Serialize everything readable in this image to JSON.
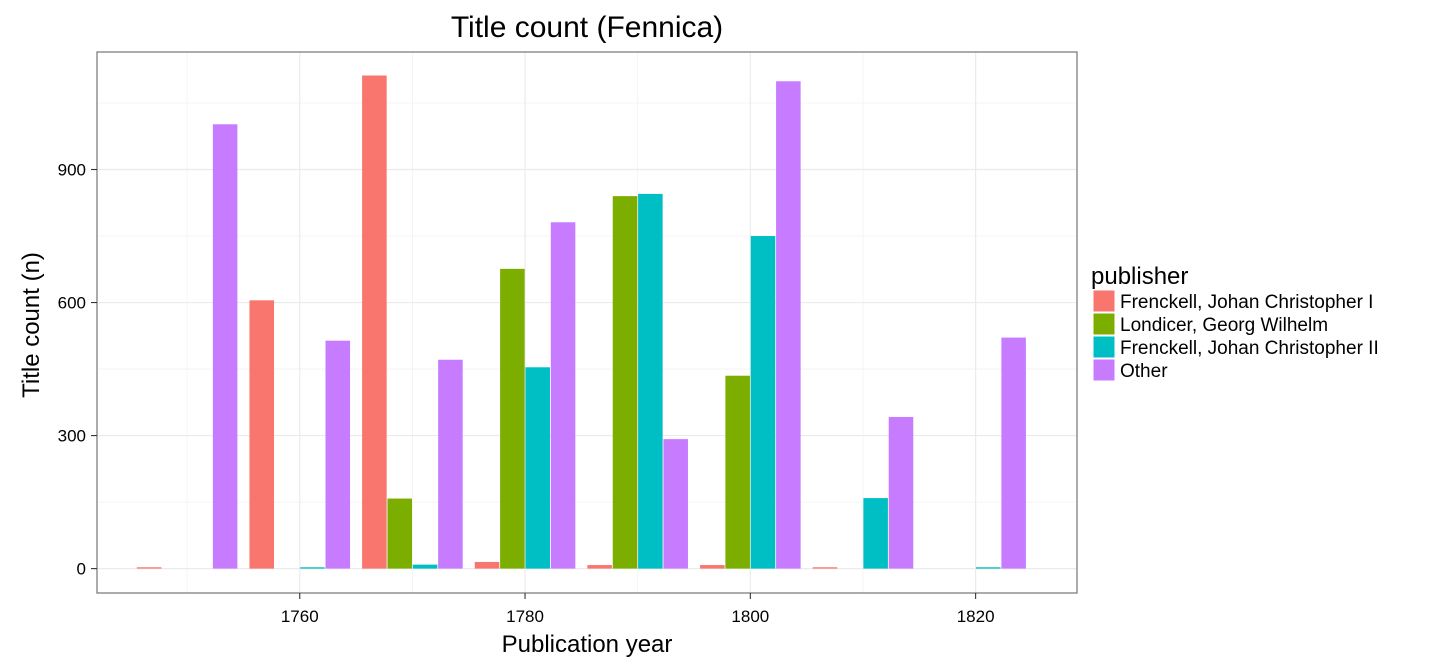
{
  "chart_data": {
    "type": "bar",
    "title": "Title count (Fennica)",
    "xlabel": "Publication year",
    "ylabel": "Title count (n)",
    "xlim": [
      1742,
      1829
    ],
    "ylim": [
      -55,
      1165
    ],
    "x_ticks": [
      1760,
      1780,
      1800,
      1820
    ],
    "y_ticks": [
      0,
      300,
      600,
      900
    ],
    "x_tick_labels": [
      "1760",
      "1780",
      "1800",
      "1820"
    ],
    "y_tick_labels": [
      "0",
      "300",
      "600",
      "900"
    ],
    "group_width_years": 9,
    "grid": true,
    "legend": {
      "title": "publisher",
      "position": "right"
    },
    "colors": [
      "#F8766D",
      "#7CAE00",
      "#00BFC4",
      "#C77CFF"
    ],
    "groups": [
      1750,
      1760,
      1770,
      1780,
      1790,
      1800,
      1810,
      1820
    ],
    "series": [
      {
        "name": "Frenckell, Johan Christopher I",
        "values": [
          3,
          605,
          1112,
          15,
          8,
          8,
          3,
          null
        ]
      },
      {
        "name": "Londicer, Georg Wilhelm",
        "values": [
          null,
          null,
          158,
          676,
          840,
          435,
          null,
          null
        ]
      },
      {
        "name": "Frenckell, Johan Christopher II",
        "values": [
          null,
          3,
          9,
          454,
          845,
          750,
          159,
          3
        ]
      },
      {
        "name": "Other",
        "values": [
          1002,
          514,
          471,
          781,
          292,
          1099,
          342,
          521
        ]
      }
    ]
  }
}
